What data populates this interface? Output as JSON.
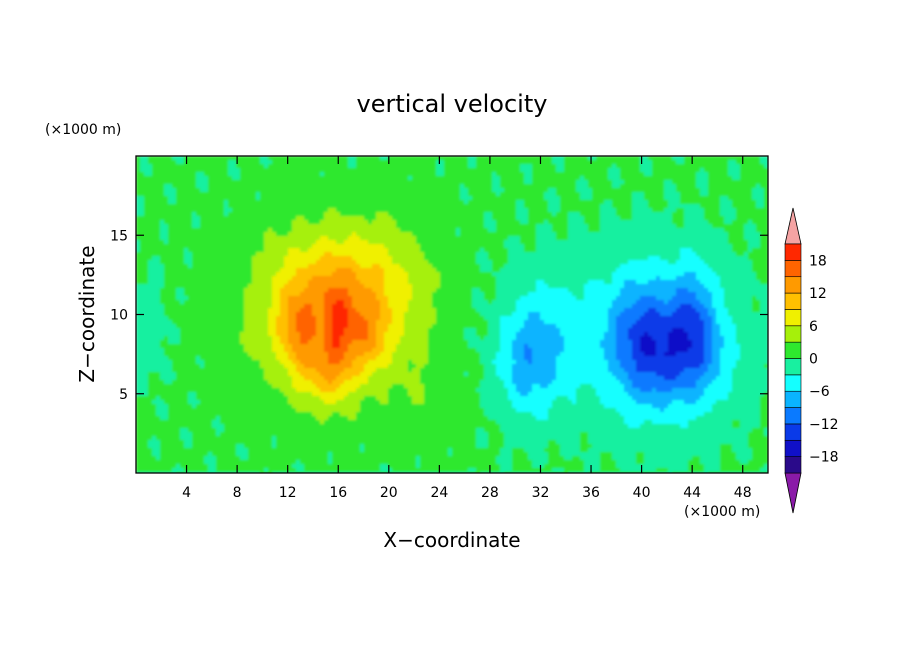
{
  "chart_data": {
    "type": "heatmap",
    "title": "vertical velocity",
    "xlabel": "X−coordinate",
    "ylabel": "Z−coordinate",
    "x_unit_label": "(×1000 m)",
    "y_unit_label": "(×1000 m)",
    "xlim": [
      0,
      50
    ],
    "ylim": [
      0,
      20
    ],
    "x_ticks": [
      4,
      8,
      12,
      16,
      20,
      24,
      28,
      32,
      36,
      40,
      44,
      48
    ],
    "y_ticks": [
      5,
      10,
      15
    ],
    "x_tick_labels": [
      "4",
      "8",
      "12",
      "16",
      "20",
      "24",
      "28",
      "32",
      "36",
      "40",
      "44",
      "48"
    ],
    "y_tick_labels": [
      "5",
      "10",
      "15"
    ],
    "colorbar": {
      "levels": [
        -21,
        -18,
        -15,
        -12,
        -9,
        -6,
        -3,
        0,
        3,
        6,
        9,
        12,
        15,
        18,
        21
      ],
      "labels": [
        "18",
        "12",
        "6",
        "0",
        "−6",
        "−12",
        "−18"
      ],
      "label_values": [
        18,
        12,
        6,
        0,
        -6,
        -12,
        -18
      ],
      "colors": [
        "#8a1aa8",
        "#2a0a8a",
        "#1010c8",
        "#0a3ae8",
        "#0a7aff",
        "#0ab4ff",
        "#14ffff",
        "#18f0a0",
        "#2ee82e",
        "#a6f00a",
        "#f0f000",
        "#ffc000",
        "#ff9a00",
        "#ff6400",
        "#ff2800",
        "#f5a3a3"
      ]
    },
    "features": [
      {
        "kind": "updraft",
        "x": 15.5,
        "z": 9.5,
        "peak": 18
      },
      {
        "kind": "updraft",
        "x": 14,
        "z": 7.5,
        "peak": 15
      },
      {
        "kind": "downdraft",
        "x": 43.5,
        "z": 7.5,
        "peak": -15
      },
      {
        "kind": "downdraft",
        "x": 39.5,
        "z": 8,
        "peak": -13
      },
      {
        "kind": "downdraft",
        "x": 31,
        "z": 7,
        "peak": -10
      }
    ]
  }
}
